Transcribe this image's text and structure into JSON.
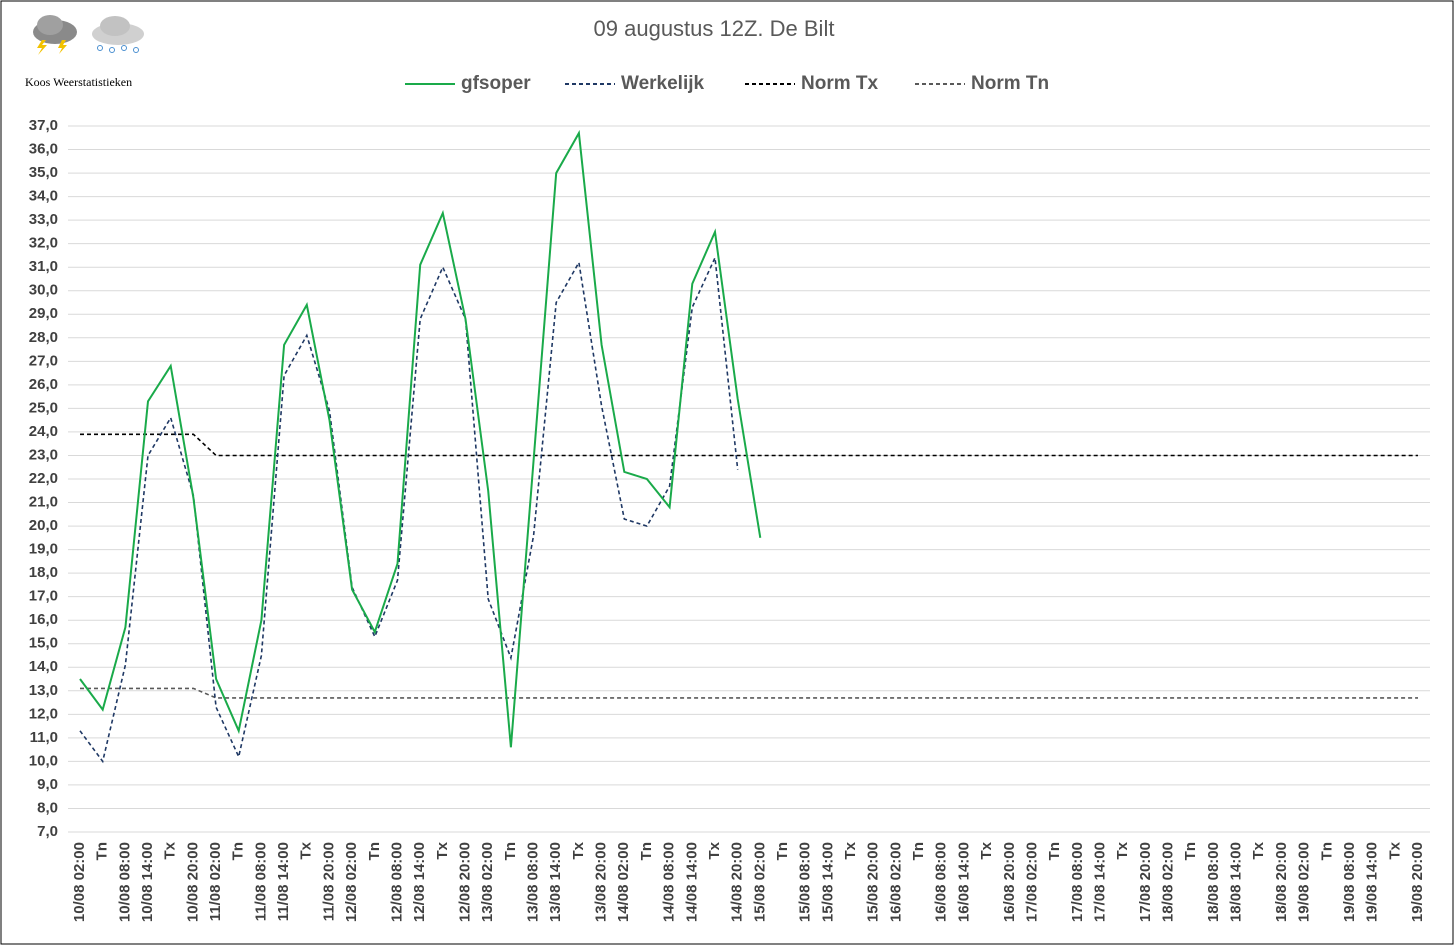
{
  "chart_data": {
    "type": "line",
    "title": "09 augustus 12Z. De Bilt",
    "source": "Koos Weerstatistieken",
    "categories": [
      "10/08 02:00",
      "Tn",
      "10/08 08:00",
      "10/08 14:00",
      "Tx",
      "10/08 20:00",
      "11/08 02:00",
      "Tn",
      "11/08 08:00",
      "11/08 14:00",
      "Tx",
      "11/08 20:00",
      "12/08 02:00",
      "Tn",
      "12/08 08:00",
      "12/08 14:00",
      "Tx",
      "12/08 20:00",
      "13/08 02:00",
      "Tn",
      "13/08 08:00",
      "13/08 14:00",
      "Tx",
      "13/08 20:00",
      "14/08 02:00",
      "Tn",
      "14/08 08:00",
      "14/08 14:00",
      "Tx",
      "14/08 20:00",
      "15/08 02:00",
      "Tn",
      "15/08 08:00",
      "15/08 14:00",
      "Tx",
      "15/08 20:00",
      "16/08 02:00",
      "Tn",
      "16/08 08:00",
      "16/08 14:00",
      "Tx",
      "16/08 20:00",
      "17/08 02:00",
      "Tn",
      "17/08 08:00",
      "17/08 14:00",
      "Tx",
      "17/08 20:00",
      "18/08 02:00",
      "Tn",
      "18/08 08:00",
      "18/08 14:00",
      "Tx",
      "18/08 20:00",
      "19/08 02:00",
      "Tn",
      "19/08 08:00",
      "19/08 14:00",
      "Tx",
      "19/08 20:00"
    ],
    "series": [
      {
        "name": "gfsoper",
        "color": "#1aaa4a",
        "dashed": false,
        "values": [
          13.5,
          12.2,
          15.7,
          25.3,
          26.8,
          21.2,
          13.5,
          11.3,
          16.0,
          27.7,
          29.4,
          24.5,
          17.3,
          15.5,
          18.4,
          31.1,
          33.3,
          28.8,
          21.5,
          10.6,
          22.8,
          35.0,
          36.7,
          27.7,
          22.3,
          22.0,
          20.8,
          30.3,
          32.5,
          25.4,
          19.5,
          null,
          null,
          null,
          null,
          null,
          null,
          null,
          null,
          null,
          null,
          null,
          null,
          null,
          null,
          null,
          null,
          null,
          null,
          null,
          null,
          null,
          null,
          null,
          null,
          null,
          null,
          null,
          null,
          null
        ]
      },
      {
        "name": "Werkelijk",
        "color": "#1f3864",
        "dashed": true,
        "values": [
          11.3,
          10.0,
          14.1,
          23.0,
          24.6,
          21.3,
          12.3,
          10.2,
          14.5,
          26.4,
          28.1,
          24.9,
          17.4,
          15.3,
          17.7,
          28.8,
          31.0,
          28.8,
          16.9,
          14.4,
          19.6,
          29.5,
          31.2,
          25.1,
          20.3,
          20.0,
          21.7,
          29.3,
          31.4,
          22.4,
          null,
          null,
          null,
          null,
          null,
          null,
          null,
          null,
          null,
          null,
          null,
          null,
          null,
          null,
          null,
          null,
          null,
          null,
          null,
          null,
          null,
          null,
          null,
          null,
          null,
          null,
          null,
          null,
          null,
          null
        ]
      },
      {
        "name": "Norm Tx",
        "color": "#000000",
        "dashed": true,
        "values": [
          23.9,
          23.9,
          23.9,
          23.9,
          23.9,
          23.9,
          23.0,
          23.0,
          23.0,
          23.0,
          23.0,
          23.0,
          23.0,
          23.0,
          23.0,
          23.0,
          23.0,
          23.0,
          23.0,
          23.0,
          23.0,
          23.0,
          23.0,
          23.0,
          23.0,
          23.0,
          23.0,
          23.0,
          23.0,
          23.0,
          23.0,
          23.0,
          23.0,
          23.0,
          23.0,
          23.0,
          23.0,
          23.0,
          23.0,
          23.0,
          23.0,
          23.0,
          23.0,
          23.0,
          23.0,
          23.0,
          23.0,
          23.0,
          23.0,
          23.0,
          23.0,
          23.0,
          23.0,
          23.0,
          23.0,
          23.0,
          23.0,
          23.0,
          23.0,
          23.0
        ]
      },
      {
        "name": "Norm Tn",
        "color": "#595959",
        "dashed": true,
        "values": [
          13.1,
          13.1,
          13.1,
          13.1,
          13.1,
          13.1,
          12.7,
          12.7,
          12.7,
          12.7,
          12.7,
          12.7,
          12.7,
          12.7,
          12.7,
          12.7,
          12.7,
          12.7,
          12.7,
          12.7,
          12.7,
          12.7,
          12.7,
          12.7,
          12.7,
          12.7,
          12.7,
          12.7,
          12.7,
          12.7,
          12.7,
          12.7,
          12.7,
          12.7,
          12.7,
          12.7,
          12.7,
          12.7,
          12.7,
          12.7,
          12.7,
          12.7,
          12.7,
          12.7,
          12.7,
          12.7,
          12.7,
          12.7,
          12.7,
          12.7,
          12.7,
          12.7,
          12.7,
          12.7,
          12.7,
          12.7,
          12.7,
          12.7,
          12.7,
          12.7
        ]
      }
    ],
    "ylim": [
      7,
      37
    ],
    "yticks": [
      {
        "value": 7,
        "label": "7,0"
      },
      {
        "value": 8,
        "label": "8,0"
      },
      {
        "value": 9,
        "label": "9,0"
      },
      {
        "value": 10,
        "label": "10,0"
      },
      {
        "value": 11,
        "label": "11,0"
      },
      {
        "value": 12,
        "label": "12,0"
      },
      {
        "value": 13,
        "label": "13,0"
      },
      {
        "value": 14,
        "label": "14,0"
      },
      {
        "value": 15,
        "label": "15,0"
      },
      {
        "value": 16,
        "label": "16,0"
      },
      {
        "value": 17,
        "label": "17,0"
      },
      {
        "value": 18,
        "label": "18,0"
      },
      {
        "value": 19,
        "label": "19,0"
      },
      {
        "value": 20,
        "label": "20,0"
      },
      {
        "value": 21,
        "label": "21,0"
      },
      {
        "value": 22,
        "label": "22,0"
      },
      {
        "value": 23,
        "label": "23,0"
      },
      {
        "value": 24,
        "label": "24,0"
      },
      {
        "value": 25,
        "label": "25,0"
      },
      {
        "value": 26,
        "label": "26,0"
      },
      {
        "value": 27,
        "label": "27,0"
      },
      {
        "value": 28,
        "label": "28,0"
      },
      {
        "value": 29,
        "label": "29,0"
      },
      {
        "value": 30,
        "label": "30,0"
      },
      {
        "value": 31,
        "label": "31,0"
      },
      {
        "value": 32,
        "label": "32,0"
      },
      {
        "value": 33,
        "label": "33,0"
      },
      {
        "value": 34,
        "label": "34,0"
      },
      {
        "value": 35,
        "label": "35,0"
      },
      {
        "value": 36,
        "label": "36,0"
      },
      {
        "value": 37,
        "label": "37,0"
      }
    ],
    "grid": true,
    "legend": "top"
  }
}
